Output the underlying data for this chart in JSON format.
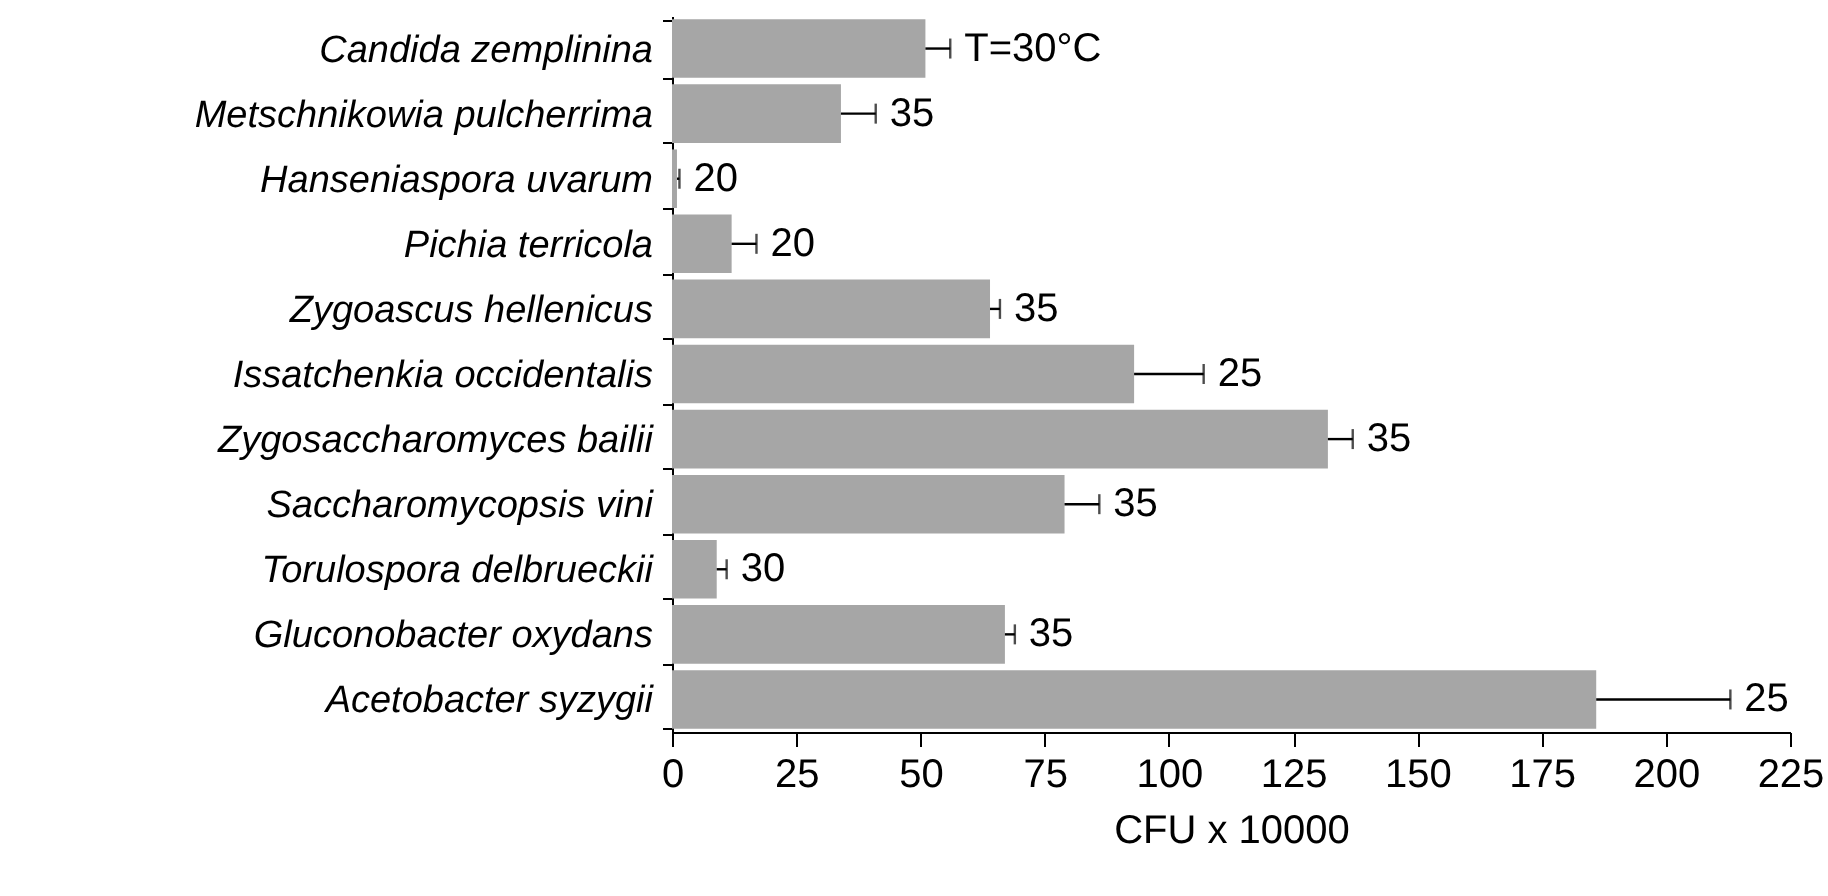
{
  "chart_data": {
    "type": "bar",
    "orientation": "horizontal",
    "xlabel": "CFU x 10000",
    "categories": [
      "Candida zemplinina",
      "Metschnikowia pulcherrima",
      "Hanseniaspora uvarum",
      "Pichia terricola",
      "Zygoascus hellenicus",
      "Issatchenkia occidentalis",
      "Zygosaccharomyces bailii",
      "Saccharomycopsis vini",
      "Torulospora delbrueckii",
      "Gluconobacter oxydans",
      "Acetobacter syzygii"
    ],
    "values": [
      51,
      34,
      1,
      12,
      64,
      93,
      132,
      79,
      9,
      67,
      186
    ],
    "errors": [
      [
        51,
        56
      ],
      [
        34,
        41
      ],
      [
        1,
        1.5
      ],
      [
        12,
        17
      ],
      [
        64,
        66
      ],
      [
        93,
        107
      ],
      [
        132,
        137
      ],
      [
        79,
        86
      ],
      [
        9,
        11
      ],
      [
        67,
        69
      ],
      [
        186,
        213
      ]
    ],
    "color": "#a6a6a6",
    "xlim": [
      0,
      225
    ],
    "xticks": [
      0,
      25,
      50,
      75,
      100,
      125,
      150,
      175,
      200,
      225
    ],
    "annotations": [
      {
        "text": "T=30°C",
        "x": 56,
        "y": "Candida zemplinina"
      },
      {
        "text": "35",
        "x": 41,
        "y": "Metschnikowia pulcherrima"
      },
      {
        "text": "20",
        "x": 1.5,
        "y": "Hanseniaspora uvarum"
      },
      {
        "text": "20",
        "x": 17,
        "y": "Pichia terricola"
      },
      {
        "text": "35",
        "x": 66,
        "y": "Zygoascus hellenicus"
      },
      {
        "text": "25",
        "x": 107,
        "y": "Issatchenkia occidentalis"
      },
      {
        "text": "35",
        "x": 137,
        "y": "Zygosaccharomyces bailii"
      },
      {
        "text": "35",
        "x": 86,
        "y": "Saccharomycopsis vini"
      },
      {
        "text": "30",
        "x": 11,
        "y": "Torulospora delbrueckii"
      },
      {
        "text": "35",
        "x": 69,
        "y": "Gluconobacter oxydans"
      },
      {
        "text": "25",
        "x": 213,
        "y": "Acetobacter syzygii"
      }
    ]
  }
}
